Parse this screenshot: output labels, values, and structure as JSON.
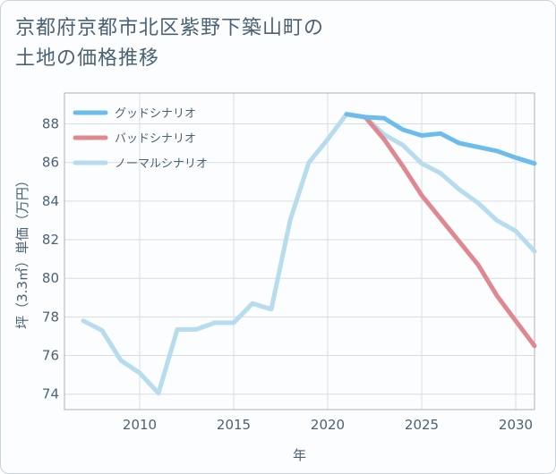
{
  "page": {
    "title": "京都府京都市北区紫野下築山町の\n土地の価格推移"
  },
  "chart_data": {
    "type": "line",
    "xlabel": "年",
    "ylabel": "坪（3.3㎡）単価（万円）",
    "xlim": [
      2006,
      2031
    ],
    "ylim": [
      73.2,
      89.6
    ],
    "xticks": [
      2010,
      2015,
      2020,
      2025,
      2030
    ],
    "yticks": [
      74,
      76,
      78,
      80,
      82,
      84,
      86,
      88
    ],
    "grid": true,
    "legend_position": "top-left",
    "series": [
      {
        "name": "グッドシナリオ",
        "color": "#6cbcee",
        "points": [
          [
            2021,
            88.5
          ],
          [
            2022,
            88.35
          ],
          [
            2023,
            88.3
          ],
          [
            2024,
            87.7
          ],
          [
            2025,
            87.4
          ],
          [
            2026,
            87.5
          ],
          [
            2027,
            87.0
          ],
          [
            2028,
            86.8
          ],
          [
            2029,
            86.6
          ],
          [
            2030,
            86.25
          ],
          [
            2031,
            85.95
          ]
        ]
      },
      {
        "name": "バッドシナリオ",
        "color": "#e0888f",
        "points": [
          [
            2021,
            88.5
          ],
          [
            2022,
            88.35
          ],
          [
            2023,
            87.2
          ],
          [
            2024,
            85.8
          ],
          [
            2025,
            84.3
          ],
          [
            2026,
            83.1
          ],
          [
            2027,
            81.9
          ],
          [
            2028,
            80.7
          ],
          [
            2029,
            79.1
          ],
          [
            2030,
            77.8
          ],
          [
            2031,
            76.5
          ]
        ]
      },
      {
        "name": "ノーマルシナリオ",
        "color": "#b6dcee",
        "points": [
          [
            2007,
            77.8
          ],
          [
            2008,
            77.3
          ],
          [
            2009,
            75.75
          ],
          [
            2010,
            75.1
          ],
          [
            2011,
            74.05
          ],
          [
            2012,
            77.35
          ],
          [
            2013,
            77.35
          ],
          [
            2014,
            77.7
          ],
          [
            2015,
            77.7
          ],
          [
            2016,
            78.7
          ],
          [
            2017,
            78.4
          ],
          [
            2018,
            83.0
          ],
          [
            2019,
            86.0
          ],
          [
            2020,
            87.2
          ],
          [
            2021,
            88.5
          ],
          [
            2022,
            88.35
          ],
          [
            2023,
            87.45
          ],
          [
            2024,
            86.9
          ],
          [
            2025,
            85.95
          ],
          [
            2026,
            85.45
          ],
          [
            2027,
            84.6
          ],
          [
            2028,
            83.9
          ],
          [
            2029,
            83.0
          ],
          [
            2030,
            82.45
          ],
          [
            2031,
            81.4
          ]
        ]
      }
    ]
  }
}
